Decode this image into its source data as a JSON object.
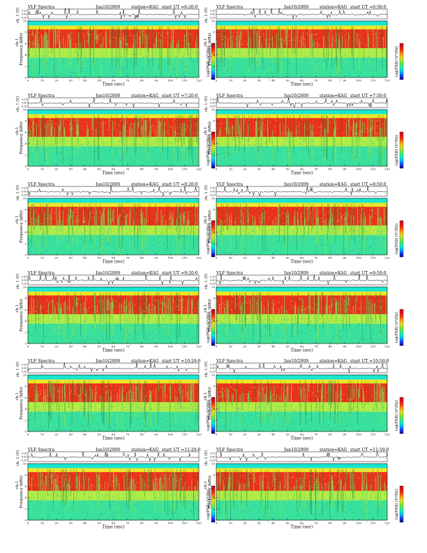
{
  "palette": {
    "colorbar": [
      "#0a0a78",
      "#1a3cff",
      "#00b4ff",
      "#12f0c8",
      "#3cf064",
      "#9be632",
      "#e6e61e",
      "#ff9a14",
      "#ff3c0a",
      "#e01414",
      "#c80a28"
    ],
    "trace": "#000000",
    "frame": "#000000"
  },
  "labels": {
    "ylabel_line": "ch. 1 (V)",
    "ylabel_spec_ch": "ch.1",
    "ylabel_spec_freq": "Frequency  (kHz)",
    "colorbar_label": "log(PSD) (V²/Hz)",
    "xlabel": "Time  (sec)",
    "xticks": [
      "0",
      "10",
      "20",
      "30",
      "40",
      "50",
      "60",
      "70",
      "80",
      "90",
      "100",
      "110",
      "120"
    ],
    "spec_yticks": [
      "0",
      "2",
      "4",
      "6",
      "8",
      "10"
    ],
    "line_yticks": [
      "0.20",
      "0.00",
      "-0.20"
    ]
  },
  "chart_data": [
    {
      "type": "heatmap",
      "title": "VLF Spectra",
      "date": "Jun10/2009",
      "station": "station=KAG",
      "start": "start  UT =6:20:0",
      "xlim": [
        0,
        120
      ],
      "ylim": [
        0,
        10
      ]
    },
    {
      "type": "heatmap",
      "title": "VLF Spectra",
      "date": "Jun10/2009",
      "station": "station=KAG",
      "start": "start  UT =6:50:0",
      "xlim": [
        0,
        120
      ],
      "ylim": [
        0,
        10
      ]
    },
    {
      "type": "heatmap",
      "title": "VLF Spectra",
      "date": "Jun10/2009",
      "station": "station=KAG",
      "start": "start  UT =7:20:0",
      "xlim": [
        0,
        120
      ],
      "ylim": [
        0,
        10
      ]
    },
    {
      "type": "heatmap",
      "title": "VLF Spectra",
      "date": "Jun10/2009",
      "station": "station=KAG",
      "start": "start  UT =7:50:0",
      "xlim": [
        0,
        120
      ],
      "ylim": [
        0,
        10
      ]
    },
    {
      "type": "heatmap",
      "title": "VLF Spectra",
      "date": "Jun10/2009",
      "station": "station=KAG",
      "start": "start  UT =8:20:0",
      "xlim": [
        0,
        120
      ],
      "ylim": [
        0,
        10
      ]
    },
    {
      "type": "heatmap",
      "title": "VLF Spectra",
      "date": "Jun10/2009",
      "station": "station=KAG",
      "start": "start  UT =8:50:0",
      "xlim": [
        0,
        120
      ],
      "ylim": [
        0,
        10
      ]
    },
    {
      "type": "heatmap",
      "title": "VLF Spectra",
      "date": "Jun10/2009",
      "station": "station=KAG",
      "start": "start  UT =9:20:0",
      "xlim": [
        0,
        120
      ],
      "ylim": [
        0,
        10
      ]
    },
    {
      "type": "heatmap",
      "title": "VLF Spectra",
      "date": "Jun10/2009",
      "station": "station=KAG",
      "start": "start  UT =9:50:0",
      "xlim": [
        0,
        120
      ],
      "ylim": [
        0,
        10
      ]
    },
    {
      "type": "heatmap",
      "title": "VLF Spectra",
      "date": "Jun10/2009",
      "station": "station=KAG",
      "start": "start  UT =10:20:0",
      "xlim": [
        0,
        120
      ],
      "ylim": [
        0,
        10
      ]
    },
    {
      "type": "heatmap",
      "title": "VLF Spectra",
      "date": "Jun10/2009",
      "station": "station=KAG",
      "start": "start  UT =10:50:0",
      "xlim": [
        0,
        120
      ],
      "ylim": [
        0,
        10
      ]
    },
    {
      "type": "heatmap",
      "title": "VLF Spectra",
      "date": "Jun10/2009",
      "station": "station=KAG",
      "start": "start  UT =11:20:0",
      "xlim": [
        0,
        120
      ],
      "ylim": [
        0,
        10
      ]
    },
    {
      "type": "heatmap",
      "title": "VLF Spectra",
      "date": "Jun10/2009",
      "station": "station=KAG",
      "start": "start  UT =11:50:0",
      "xlim": [
        0,
        120
      ],
      "ylim": [
        0,
        10
      ]
    }
  ]
}
